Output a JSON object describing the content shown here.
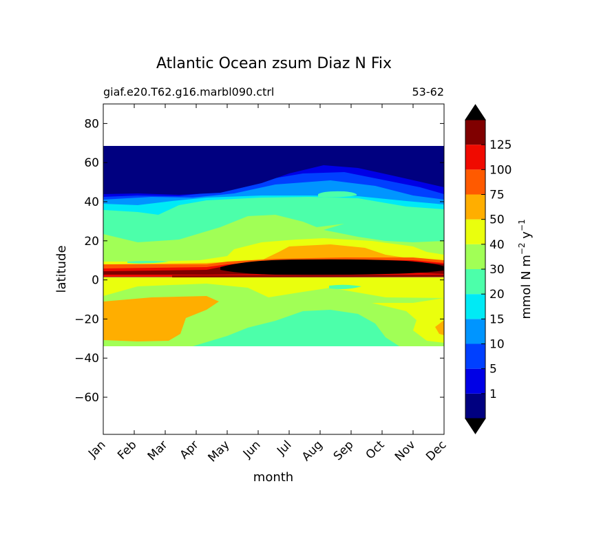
{
  "chart_data": {
    "type": "contour",
    "title": "Atlantic Ocean zsum Diaz N Fix",
    "subtitle_left": "giaf.e20.T62.g16.marbl090.ctrl",
    "subtitle_right": "53-62",
    "xlabel": "month",
    "ylabel": "latitude",
    "x_ticks": [
      "Jan",
      "Feb",
      "Mar",
      "Apr",
      "May",
      "Jun",
      "Jul",
      "Aug",
      "Sep",
      "Oct",
      "Nov",
      "Dec"
    ],
    "y_ticks": [
      80,
      60,
      40,
      20,
      0,
      -20,
      -40,
      -60
    ],
    "ylim": [
      -79,
      90
    ],
    "data_lat_range": [
      -34,
      69
    ],
    "colorbar": {
      "label_main": "mmol N m",
      "label_exp1": "−2",
      "label_mid": " y",
      "label_exp2": "−1",
      "tick_labels": [
        "1",
        "5",
        "10",
        "15",
        "20",
        "30",
        "40",
        "50",
        "75",
        "100",
        "125"
      ],
      "extend": "both",
      "under_color": "#000000",
      "over_color": "#000000",
      "colors": [
        "#000080",
        "#0000e6",
        "#0040ff",
        "#0095ff",
        "#00eaf5",
        "#4cffaa",
        "#a1ff56",
        "#eaff0d",
        "#ffae00",
        "#ff5a00",
        "#f00a00",
        "#800000"
      ]
    },
    "bands": [
      {
        "level": "20-30",
        "lat": [
          40,
          34
        ],
        "notes": "broad mid-latitude band"
      },
      {
        "level": "30-40",
        "lat": [
          30,
          15
        ],
        "notes": "subtropical north"
      },
      {
        "level": "40-50",
        "lat": [
          17,
          8
        ],
        "notes": "peaks Jun–Sep"
      },
      {
        "level": ">125",
        "lat": [
          9,
          5
        ],
        "notes": "equatorial maximum Jun–Dec"
      },
      {
        "level": "50-75",
        "lat": [
          -12,
          -30
        ],
        "notes": "South Atlantic, Jan–Apr and Dec"
      },
      {
        "level": "20-30",
        "lat": [
          -15,
          -34
        ],
        "notes": "South Atlantic, Jul–Oct"
      }
    ]
  }
}
